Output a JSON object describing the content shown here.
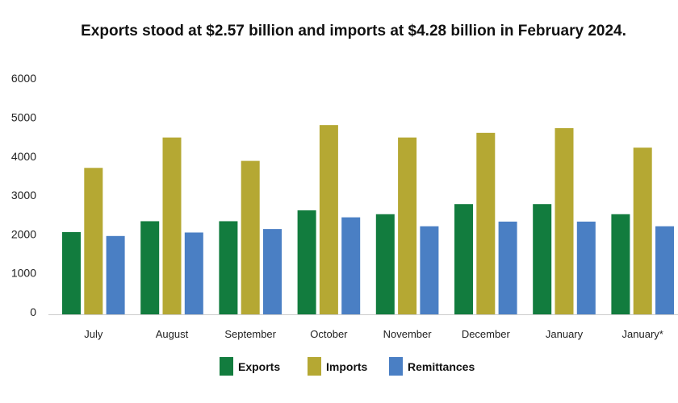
{
  "chart_data": {
    "type": "bar",
    "title": "Exports stood at $2.57 billion and imports at $4.28 billion in February 2024.",
    "xlabel": "",
    "ylabel": "",
    "ylim": [
      0,
      6000
    ],
    "yticks": [
      "0",
      "1000",
      "2000",
      "3000",
      "4000",
      "5000",
      "6000"
    ],
    "grid": false,
    "legend_position": "bottom",
    "categories": [
      "July",
      "August",
      "September",
      "October",
      "November",
      "December",
      "January",
      "January*"
    ],
    "series": [
      {
        "name": "Exports",
        "color": "#127c3e",
        "values": [
          2050,
          2330,
          2330,
          2610,
          2510,
          2770,
          2770,
          2510
        ]
      },
      {
        "name": "Imports",
        "color": "#b5a833",
        "values": [
          3700,
          4480,
          3880,
          4800,
          4480,
          4600,
          4720,
          4220
        ]
      },
      {
        "name": "Remittances",
        "color": "#4a7fc4",
        "values": [
          1950,
          2040,
          2130,
          2430,
          2200,
          2320,
          2320,
          2200
        ]
      }
    ]
  }
}
